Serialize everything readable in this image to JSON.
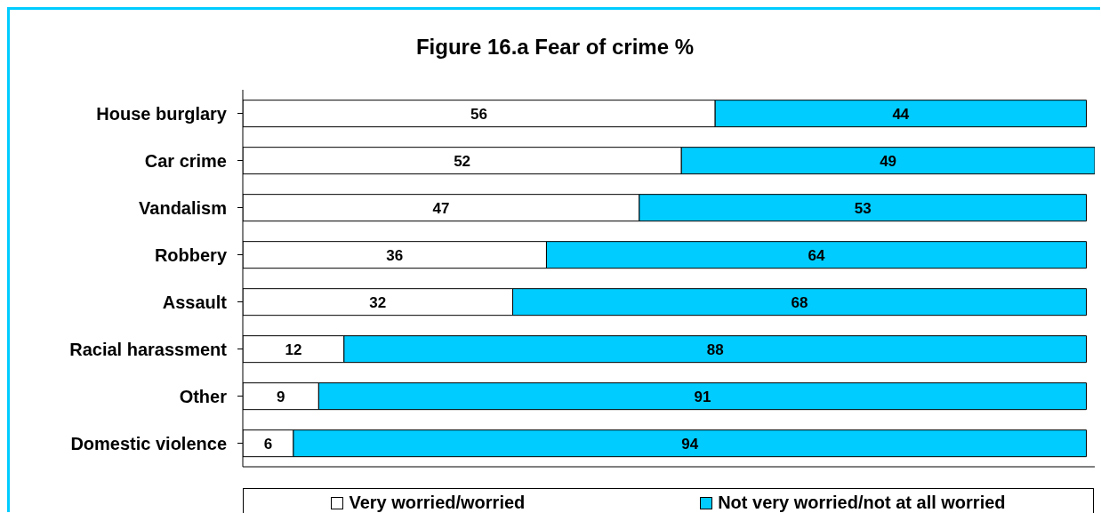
{
  "chart_data": {
    "type": "bar",
    "orientation": "horizontal",
    "stacked": true,
    "title": "Figure 16.a Fear of crime %",
    "categories": [
      "House burglary",
      "Car crime",
      "Vandalism",
      "Robbery",
      "Assault",
      "Racial harassment",
      "Other",
      "Domestic violence"
    ],
    "series": [
      {
        "name": "Very worried/worried",
        "color": "#ffffff",
        "values": [
          56,
          52,
          47,
          36,
          32,
          12,
          9,
          6
        ]
      },
      {
        "name": "Not very worried/not at all worried",
        "color": "#00ccff",
        "values": [
          44,
          49,
          53,
          64,
          68,
          88,
          91,
          94
        ]
      }
    ],
    "xlim": [
      0,
      101
    ],
    "tick_labels": "y",
    "legend": "bottom",
    "data_labels": true
  }
}
